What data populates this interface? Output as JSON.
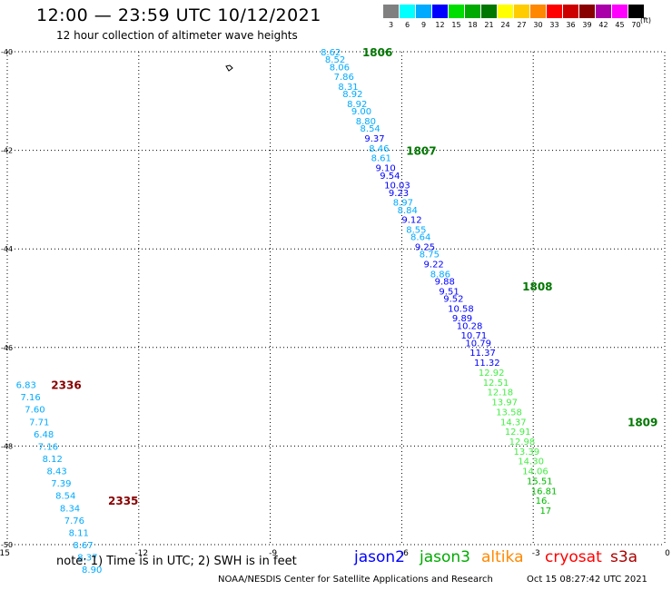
{
  "header": {
    "title": "12:00 — 23:59 UTC 10/12/2021",
    "subtitle": "12 hour collection of altimeter wave heights"
  },
  "legend": {
    "unit": "(ft)",
    "bins": [
      {
        "label": "3",
        "color": "#808080"
      },
      {
        "label": "6",
        "color": "#00ffff"
      },
      {
        "label": "9",
        "color": "#00aaff"
      },
      {
        "label": "12",
        "color": "#0000ff"
      },
      {
        "label": "15",
        "color": "#00dd00"
      },
      {
        "label": "18",
        "color": "#00aa00"
      },
      {
        "label": "21",
        "color": "#007700"
      },
      {
        "label": "24",
        "color": "#ffff00"
      },
      {
        "label": "27",
        "color": "#ffcc00"
      },
      {
        "label": "30",
        "color": "#ff8800"
      },
      {
        "label": "33",
        "color": "#ff0000"
      },
      {
        "label": "36",
        "color": "#cc0000"
      },
      {
        "label": "39",
        "color": "#880000"
      },
      {
        "label": "42",
        "color": "#aa00aa"
      },
      {
        "label": "45",
        "color": "#ff00ff"
      },
      {
        "label": "70",
        "color": "#000000"
      }
    ]
  },
  "footer": {
    "note": "note:  1) Time is in UTC;  2) SWH is in feet",
    "satellites": [
      {
        "name": "jason2",
        "color": "#0000ff"
      },
      {
        "name": "jason3",
        "color": "#00aa00"
      },
      {
        "name": "altika",
        "color": "#ff8800"
      },
      {
        "name": "cryosat",
        "color": "#ff0000"
      },
      {
        "name": "s3a",
        "color": "#aa0000"
      }
    ],
    "credit": "NOAA/NESDIS Center for Satellite Applications and Research",
    "timestamp": "Oct 15 08:27:42 UTC 2021"
  },
  "chart_data": {
    "type": "scatter",
    "title": "12:00 — 23:59 UTC 10/12/2021",
    "subtitle": "12 hour collection of altimeter wave heights",
    "xlim": [
      -15,
      0
    ],
    "ylim": [
      -50,
      -40
    ],
    "x_ticks": [
      "-15",
      "-12",
      "-9",
      "-6",
      "-3",
      "0"
    ],
    "x_tick_values": [
      -15,
      -12,
      -9,
      -6,
      -3,
      0
    ],
    "y_ticks": [
      "-40",
      "-42",
      "-44",
      "-46",
      "-48",
      "-50"
    ],
    "y_tick_values": [
      -40,
      -42,
      -44,
      -46,
      -48,
      -50
    ],
    "grid": true,
    "grid_style": "dotted",
    "track_labels": [
      {
        "text": "1806",
        "lon": -6.9,
        "lat": -40.0,
        "color": "#007700"
      },
      {
        "text": "1807",
        "lon": -5.9,
        "lat": -42.0,
        "color": "#007700"
      },
      {
        "text": "1808",
        "lon": -3.25,
        "lat": -44.75,
        "color": "#007700"
      },
      {
        "text": "1809",
        "lon": -0.85,
        "lat": -47.5,
        "color": "#007700"
      },
      {
        "text": "2336",
        "lon": -14.0,
        "lat": -46.75,
        "color": "#880000"
      },
      {
        "text": "2335",
        "lon": -12.7,
        "lat": -49.1,
        "color": "#880000"
      }
    ],
    "series": [
      {
        "points": [
          {
            "lon": -7.85,
            "lat": -40.0,
            "swh": "8.62",
            "color": "#00aaff"
          },
          {
            "lon": -7.75,
            "lat": -40.15,
            "swh": "8.52",
            "color": "#00aaff"
          },
          {
            "lon": -7.65,
            "lat": -40.3,
            "swh": "8.06",
            "color": "#00aaff"
          },
          {
            "lon": -7.55,
            "lat": -40.5,
            "swh": "7.86",
            "color": "#00aaff"
          },
          {
            "lon": -7.45,
            "lat": -40.7,
            "swh": "8.31",
            "color": "#00aaff"
          },
          {
            "lon": -7.35,
            "lat": -40.85,
            "swh": "8.92",
            "color": "#00aaff"
          },
          {
            "lon": -7.25,
            "lat": -41.05,
            "swh": "8.92",
            "color": "#00aaff"
          },
          {
            "lon": -7.15,
            "lat": -41.2,
            "swh": "9.00",
            "color": "#00aaff"
          },
          {
            "lon": -7.05,
            "lat": -41.4,
            "swh": "8.80",
            "color": "#00aaff"
          },
          {
            "lon": -6.95,
            "lat": -41.55,
            "swh": "8.54",
            "color": "#00aaff"
          },
          {
            "lon": -6.85,
            "lat": -41.75,
            "swh": "9.37",
            "color": "#0000ff"
          },
          {
            "lon": -6.75,
            "lat": -41.95,
            "swh": "8.46",
            "color": "#00aaff"
          },
          {
            "lon": -6.7,
            "lat": -42.15,
            "swh": "8.61",
            "color": "#00aaff"
          },
          {
            "lon": -6.6,
            "lat": -42.35,
            "swh": "9.10",
            "color": "#0000ff"
          },
          {
            "lon": -6.5,
            "lat": -42.5,
            "swh": "9.54",
            "color": "#0000ff"
          },
          {
            "lon": -6.4,
            "lat": -42.7,
            "swh": "10.03",
            "color": "#0000ff"
          },
          {
            "lon": -6.3,
            "lat": -42.85,
            "swh": "9.23",
            "color": "#0000ff"
          },
          {
            "lon": -6.2,
            "lat": -43.05,
            "swh": "8.97",
            "color": "#00aaff"
          },
          {
            "lon": -6.1,
            "lat": -43.2,
            "swh": "8.84",
            "color": "#00aaff"
          },
          {
            "lon": -6.0,
            "lat": -43.4,
            "swh": "9.12",
            "color": "#0000ff"
          },
          {
            "lon": -5.9,
            "lat": -43.6,
            "swh": "8.55",
            "color": "#00aaff"
          },
          {
            "lon": -5.8,
            "lat": -43.75,
            "swh": "8.64",
            "color": "#00aaff"
          },
          {
            "lon": -5.7,
            "lat": -43.95,
            "swh": "9.25",
            "color": "#0000ff"
          },
          {
            "lon": -5.6,
            "lat": -44.1,
            "swh": "8.75",
            "color": "#00aaff"
          },
          {
            "lon": -5.5,
            "lat": -44.3,
            "swh": "9.22",
            "color": "#0000ff"
          },
          {
            "lon": -5.35,
            "lat": -44.5,
            "swh": "8.86",
            "color": "#00aaff"
          },
          {
            "lon": -5.25,
            "lat": -44.65,
            "swh": "9.88",
            "color": "#0000ff"
          },
          {
            "lon": -5.15,
            "lat": -44.85,
            "swh": "9.51",
            "color": "#0000ff"
          },
          {
            "lon": -5.05,
            "lat": -45.0,
            "swh": "9.52",
            "color": "#0000ff"
          },
          {
            "lon": -4.95,
            "lat": -45.2,
            "swh": "10.58",
            "color": "#0000ff"
          },
          {
            "lon": -4.85,
            "lat": -45.4,
            "swh": "9.89",
            "color": "#0000ff"
          },
          {
            "lon": -4.75,
            "lat": -45.55,
            "swh": "10.28",
            "color": "#0000ff"
          },
          {
            "lon": -4.65,
            "lat": -45.75,
            "swh": "10.71",
            "color": "#0000ff"
          },
          {
            "lon": -4.55,
            "lat": -45.9,
            "swh": "10.79",
            "color": "#0000ff"
          },
          {
            "lon": -4.45,
            "lat": -46.1,
            "swh": "11.37",
            "color": "#0000ff"
          },
          {
            "lon": -4.35,
            "lat": -46.3,
            "swh": "11.32",
            "color": "#0000ff"
          },
          {
            "lon": -4.25,
            "lat": -46.5,
            "swh": "12.92",
            "color": "#44ee44"
          },
          {
            "lon": -4.15,
            "lat": -46.7,
            "swh": "12.51",
            "color": "#44ee44"
          },
          {
            "lon": -4.05,
            "lat": -46.9,
            "swh": "12.18",
            "color": "#44ee44"
          },
          {
            "lon": -3.95,
            "lat": -47.1,
            "swh": "13.97",
            "color": "#44ee44"
          },
          {
            "lon": -3.85,
            "lat": -47.3,
            "swh": "13.58",
            "color": "#44ee44"
          },
          {
            "lon": -3.75,
            "lat": -47.5,
            "swh": "14.37",
            "color": "#44ee44"
          },
          {
            "lon": -3.65,
            "lat": -47.7,
            "swh": "12.91",
            "color": "#44ee44"
          },
          {
            "lon": -3.55,
            "lat": -47.9,
            "swh": "12.98",
            "color": "#44ee44"
          },
          {
            "lon": -3.45,
            "lat": -48.1,
            "swh": "13.39",
            "color": "#44ee44"
          },
          {
            "lon": -3.35,
            "lat": -48.3,
            "swh": "14.30",
            "color": "#44ee44"
          },
          {
            "lon": -3.25,
            "lat": -48.5,
            "swh": "14.06",
            "color": "#44ee44"
          },
          {
            "lon": -3.15,
            "lat": -48.7,
            "swh": "15.51",
            "color": "#00bb00"
          },
          {
            "lon": -3.05,
            "lat": -48.9,
            "swh": "16.81",
            "color": "#00bb00"
          },
          {
            "lon": -2.95,
            "lat": -49.1,
            "swh": "16.",
            "color": "#00bb00"
          },
          {
            "lon": -2.85,
            "lat": -49.3,
            "swh": "17",
            "color": "#00bb00"
          }
        ]
      },
      {
        "points": [
          {
            "lon": -14.8,
            "lat": -46.75,
            "swh": "6.83",
            "color": "#00aaff"
          },
          {
            "lon": -14.7,
            "lat": -47.0,
            "swh": "7.16",
            "color": "#00aaff"
          },
          {
            "lon": -14.6,
            "lat": -47.25,
            "swh": "7.60",
            "color": "#00aaff"
          },
          {
            "lon": -14.5,
            "lat": -47.5,
            "swh": "7.71",
            "color": "#00aaff"
          },
          {
            "lon": -14.4,
            "lat": -47.75,
            "swh": "6.48",
            "color": "#00aaff"
          },
          {
            "lon": -14.3,
            "lat": -48.0,
            "swh": "7.16",
            "color": "#00aaff"
          },
          {
            "lon": -14.2,
            "lat": -48.25,
            "swh": "8.12",
            "color": "#00aaff"
          },
          {
            "lon": -14.1,
            "lat": -48.5,
            "swh": "8.43",
            "color": "#00aaff"
          },
          {
            "lon": -14.0,
            "lat": -48.75,
            "swh": "7.39",
            "color": "#00aaff"
          },
          {
            "lon": -13.9,
            "lat": -49.0,
            "swh": "8.54",
            "color": "#00aaff"
          },
          {
            "lon": -13.8,
            "lat": -49.25,
            "swh": "8.34",
            "color": "#00aaff"
          },
          {
            "lon": -13.7,
            "lat": -49.5,
            "swh": "7.76",
            "color": "#00aaff"
          },
          {
            "lon": -13.6,
            "lat": -49.75,
            "swh": "8.11",
            "color": "#00aaff"
          },
          {
            "lon": -13.5,
            "lat": -50.0,
            "swh": "8.67",
            "color": "#00aaff"
          },
          {
            "lon": -13.4,
            "lat": -50.25,
            "swh": "8.37",
            "color": "#00aaff"
          },
          {
            "lon": -13.3,
            "lat": -50.5,
            "swh": "8.90",
            "color": "#00aaff"
          }
        ]
      }
    ]
  }
}
